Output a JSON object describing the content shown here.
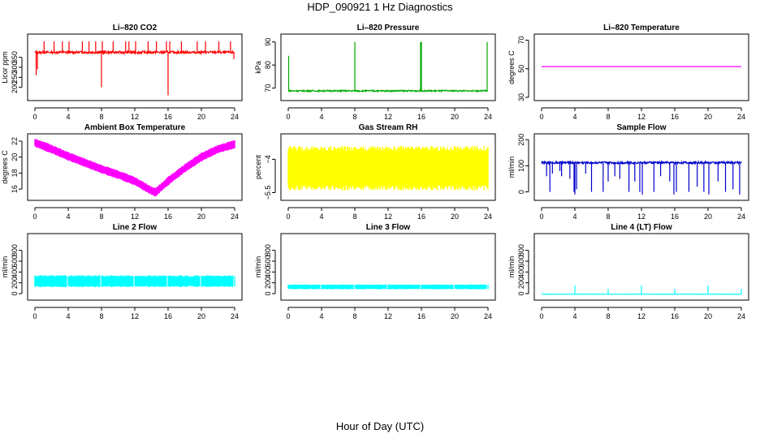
{
  "figure": {
    "title": "HDP_090921  1 Hz Diagnostics",
    "xlabel": "Hour of Day (UTC)"
  },
  "chart_data": [
    {
      "type": "line",
      "title": "Li–820 CO2",
      "ylabel": "Licor ppm",
      "color": "#ff0000",
      "xlim": [
        0,
        24
      ],
      "ylim": [
        150,
        450
      ],
      "xticks": [
        0,
        4,
        8,
        12,
        16,
        20,
        24
      ],
      "yticks": [
        200,
        250,
        300,
        350
      ],
      "baseline": 375,
      "noise": 6,
      "spikes": [
        {
          "x": 0.15,
          "y": 260
        },
        {
          "x": 0.3,
          "y": 290
        },
        {
          "x": 1.1,
          "y": 430
        },
        {
          "x": 2.3,
          "y": 430
        },
        {
          "x": 3.3,
          "y": 430
        },
        {
          "x": 4.1,
          "y": 430
        },
        {
          "x": 5.7,
          "y": 430
        },
        {
          "x": 6.5,
          "y": 430
        },
        {
          "x": 7.3,
          "y": 430
        },
        {
          "x": 8.0,
          "y": 200
        },
        {
          "x": 8.1,
          "y": 430
        },
        {
          "x": 9.4,
          "y": 430
        },
        {
          "x": 10.9,
          "y": 430
        },
        {
          "x": 11.3,
          "y": 430
        },
        {
          "x": 12.1,
          "y": 430
        },
        {
          "x": 13.6,
          "y": 430
        },
        {
          "x": 14.6,
          "y": 430
        },
        {
          "x": 15.8,
          "y": 430
        },
        {
          "x": 16.0,
          "y": 160
        },
        {
          "x": 16.2,
          "y": 430
        },
        {
          "x": 17.6,
          "y": 430
        },
        {
          "x": 19.5,
          "y": 430
        },
        {
          "x": 20.5,
          "y": 430
        },
        {
          "x": 22.1,
          "y": 430
        },
        {
          "x": 23.5,
          "y": 430
        },
        {
          "x": 23.9,
          "y": 340
        }
      ]
    },
    {
      "type": "line",
      "title": "Li–820 Pressure",
      "ylabel": "kPa",
      "color": "#00aa00",
      "xlim": [
        0,
        24
      ],
      "ylim": [
        66,
        92
      ],
      "xticks": [
        0,
        4,
        8,
        12,
        16,
        20,
        24
      ],
      "yticks": [
        70,
        80,
        90
      ],
      "baseline": 68.8,
      "noise": 0.3,
      "spikes": [
        {
          "x": 0.05,
          "y": 84
        },
        {
          "x": 8.0,
          "y": 90
        },
        {
          "x": 15.9,
          "y": 90
        },
        {
          "x": 16.0,
          "y": 90
        },
        {
          "x": 23.9,
          "y": 90
        }
      ]
    },
    {
      "type": "line",
      "title": "Li–820 Temperature",
      "ylabel": "degrees C",
      "color": "#ff00ff",
      "xlim": [
        0,
        24
      ],
      "ylim": [
        30,
        72
      ],
      "xticks": [
        0,
        4,
        8,
        12,
        16,
        20,
        24
      ],
      "yticks": [
        30,
        50,
        70
      ],
      "baseline": 51.5,
      "noise": 0,
      "spikes": []
    },
    {
      "type": "band",
      "title": "Ambient Box Temperature",
      "ylabel": "degrees C",
      "color": "#ff00ff",
      "xlim": [
        0,
        24
      ],
      "ylim": [
        15,
        22.5
      ],
      "xticks": [
        0,
        4,
        8,
        12,
        16,
        20,
        24
      ],
      "yticks": [
        16,
        18,
        20,
        22
      ],
      "center": {
        "x": [
          0,
          2,
          4,
          6,
          8,
          10,
          12,
          14,
          14.5,
          16,
          18,
          20,
          22,
          24
        ],
        "y": [
          21.8,
          21.0,
          20.1,
          19.3,
          18.5,
          17.8,
          17.0,
          15.8,
          15.6,
          17.0,
          18.6,
          20.0,
          21.0,
          21.6
        ]
      },
      "halfwidth": 0.55
    },
    {
      "type": "band",
      "title": "Gas Stream RH",
      "ylabel": "percent",
      "color": "#ffff00",
      "xlim": [
        0,
        24
      ],
      "ylim": [
        -5.7,
        -3.0
      ],
      "xticks": [
        0,
        4,
        8,
        12,
        16,
        20,
        24
      ],
      "yticks": [
        -5.5,
        -4.0
      ],
      "center": {
        "x": [
          0,
          24
        ],
        "y": [
          -4.4,
          -4.4
        ]
      },
      "halfwidth": 1.0
    },
    {
      "type": "line",
      "title": "Sample Flow",
      "ylabel": "ml/min",
      "color": "#0000cc",
      "xlim": [
        0,
        24
      ],
      "ylim": [
        -20,
        210
      ],
      "xticks": [
        0,
        4,
        8,
        12,
        16,
        20,
        24
      ],
      "yticks": [
        0,
        100,
        200
      ],
      "baseline": 112,
      "noise": 4,
      "spikes": [
        {
          "x": 0.6,
          "y": 60
        },
        {
          "x": 1.0,
          "y": 0
        },
        {
          "x": 1.3,
          "y": 70
        },
        {
          "x": 2.2,
          "y": 80
        },
        {
          "x": 2.4,
          "y": 60
        },
        {
          "x": 3.4,
          "y": 50
        },
        {
          "x": 3.9,
          "y": 0
        },
        {
          "x": 4.0,
          "y": -10
        },
        {
          "x": 4.2,
          "y": 10
        },
        {
          "x": 5.3,
          "y": 70
        },
        {
          "x": 6.0,
          "y": 0
        },
        {
          "x": 7.4,
          "y": 0
        },
        {
          "x": 8.0,
          "y": 40
        },
        {
          "x": 8.8,
          "y": 60
        },
        {
          "x": 9.4,
          "y": 50
        },
        {
          "x": 10.5,
          "y": 0
        },
        {
          "x": 11.2,
          "y": 40
        },
        {
          "x": 11.8,
          "y": 0
        },
        {
          "x": 12.1,
          "y": -10
        },
        {
          "x": 13.5,
          "y": 0
        },
        {
          "x": 14.3,
          "y": 60
        },
        {
          "x": 15.4,
          "y": 40
        },
        {
          "x": 15.9,
          "y": -10
        },
        {
          "x": 16.2,
          "y": 0
        },
        {
          "x": 17.7,
          "y": 0
        },
        {
          "x": 18.7,
          "y": 20
        },
        {
          "x": 19.5,
          "y": 0
        },
        {
          "x": 20.1,
          "y": -10
        },
        {
          "x": 21.2,
          "y": 40
        },
        {
          "x": 22.1,
          "y": 0
        },
        {
          "x": 23.0,
          "y": 10
        },
        {
          "x": 23.8,
          "y": -10
        }
      ]
    },
    {
      "type": "band",
      "title": "Line 2 Flow",
      "ylabel": "ml/min",
      "color": "#00ffff",
      "xlim": [
        0,
        24
      ],
      "ylim": [
        -60,
        1050
      ],
      "xticks": [
        0,
        4,
        8,
        12,
        16,
        20,
        24
      ],
      "yticks": [
        0,
        200,
        400,
        600,
        800
      ],
      "center": {
        "x": [
          0,
          24
        ],
        "y": [
          230,
          230
        ]
      },
      "halfwidth": 110,
      "gaps": [
        3.9,
        7.9,
        11.9,
        15.9,
        19.9,
        23.9
      ]
    },
    {
      "type": "band",
      "title": "Line 3 Flow",
      "ylabel": "ml/min",
      "color": "#00ffff",
      "xlim": [
        0,
        24
      ],
      "ylim": [
        -60,
        1050
      ],
      "xticks": [
        0,
        4,
        8,
        12,
        16,
        20,
        24
      ],
      "yticks": [
        0,
        200,
        400,
        600,
        800
      ],
      "center": {
        "x": [
          0,
          24
        ],
        "y": [
          125,
          125
        ]
      },
      "halfwidth": 45,
      "gaps": [
        3.9,
        7.9,
        11.9,
        15.9,
        19.9,
        23.9
      ]
    },
    {
      "type": "line",
      "title": "Line 4 (LT) Flow",
      "ylabel": "ml/min",
      "color": "#00ffff",
      "xlim": [
        0,
        24
      ],
      "ylim": [
        -60,
        1050
      ],
      "xticks": [
        0,
        4,
        8,
        12,
        16,
        20,
        24
      ],
      "yticks": [
        0,
        200,
        400,
        600,
        800
      ],
      "baseline": -10,
      "noise": 3,
      "spikes": [
        {
          "x": 4.0,
          "y": 150
        },
        {
          "x": 8.0,
          "y": 90
        },
        {
          "x": 12.0,
          "y": 150
        },
        {
          "x": 16.0,
          "y": 90
        },
        {
          "x": 20.0,
          "y": 150
        },
        {
          "x": 24.0,
          "y": 90
        }
      ]
    }
  ]
}
